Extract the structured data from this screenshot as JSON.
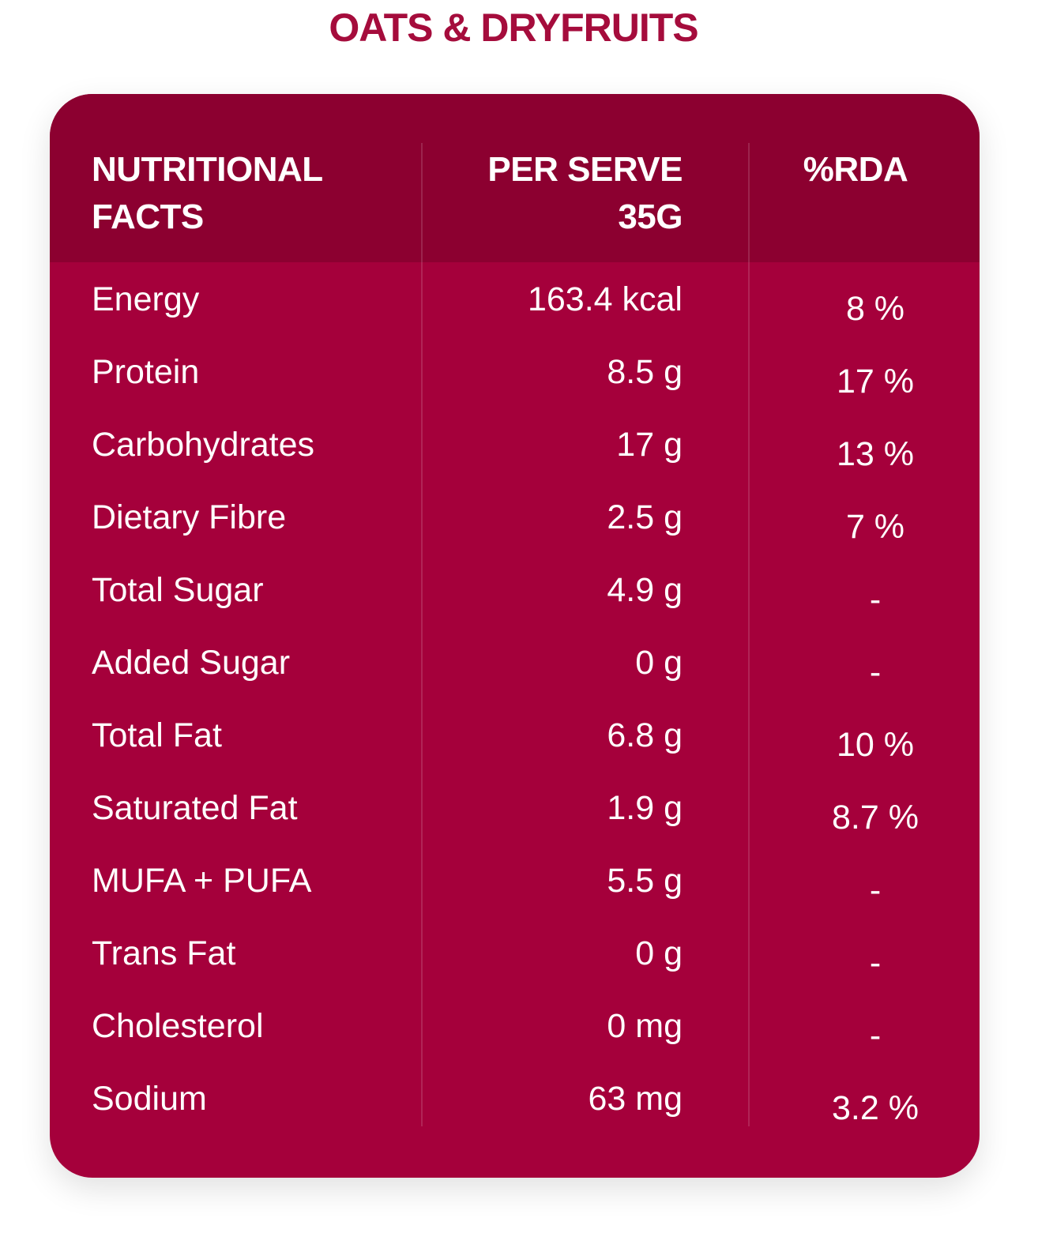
{
  "title": "OATS & DRYFRUITS",
  "table": {
    "headers": {
      "col1_line1": "NUTRITIONAL",
      "col1_line2": "FACTS",
      "col2_line1": "PER SERVE",
      "col2_line2": "35G",
      "col3": "%RDA"
    },
    "rows": [
      {
        "name": "Energy",
        "value": "163.4 kcal",
        "rda": "8 %"
      },
      {
        "name": "Protein",
        "value": "8.5 g",
        "rda": "17 %"
      },
      {
        "name": "Carbohydrates",
        "value": "17 g",
        "rda": "13 %"
      },
      {
        "name": "Dietary Fibre",
        "value": "2.5 g",
        "rda": "7 %"
      },
      {
        "name": "Total Sugar",
        "value": "4.9 g",
        "rda": "-"
      },
      {
        "name": "Added Sugar",
        "value": "0 g",
        "rda": "-"
      },
      {
        "name": "Total Fat",
        "value": "6.8 g",
        "rda": "10 %"
      },
      {
        "name": "Saturated Fat",
        "value": "1.9 g",
        "rda": "8.7 %"
      },
      {
        "name": "MUFA + PUFA",
        "value": "5.5 g",
        "rda": "-"
      },
      {
        "name": "Trans Fat",
        "value": "0 g",
        "rda": "-"
      },
      {
        "name": "Cholesterol",
        "value": "0 mg",
        "rda": "-"
      },
      {
        "name": "Sodium",
        "value": "63 mg",
        "rda": "3.2 %"
      }
    ]
  },
  "colors": {
    "title": "#a50c3c",
    "card": "#a5003b",
    "header": "#8c0030"
  }
}
